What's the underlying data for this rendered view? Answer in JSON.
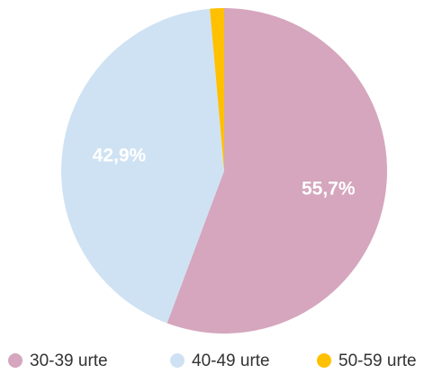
{
  "chart_data": {
    "type": "pie",
    "categories": [
      "30-39 urte",
      "40-49 urte",
      "50-59 urte"
    ],
    "values": [
      55.7,
      42.9,
      1.4
    ],
    "value_labels": [
      "55,7%",
      "42,9%",
      null
    ],
    "colors": [
      "#d5a6bd",
      "#cfe2f3",
      "#ffc000"
    ],
    "legend": "bottom"
  }
}
